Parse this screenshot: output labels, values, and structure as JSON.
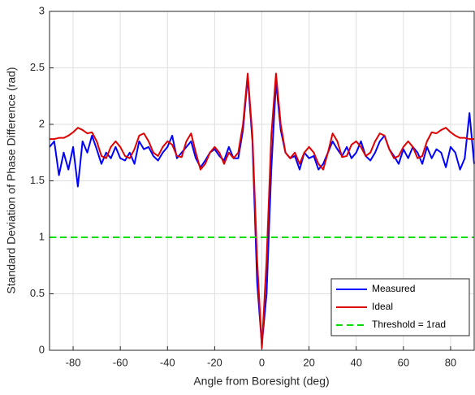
{
  "chart_data": {
    "type": "line",
    "x_label": "Angle from Boresight (deg)",
    "y_label": "Standard Deviation of Phase Difference (rad)",
    "x": [
      -90,
      -88,
      -86,
      -84,
      -82,
      -80,
      -78,
      -76,
      -74,
      -72,
      -70,
      -68,
      -66,
      -64,
      -62,
      -60,
      -58,
      -56,
      -54,
      -52,
      -50,
      -48,
      -46,
      -44,
      -42,
      -40,
      -38,
      -36,
      -34,
      -32,
      -30,
      -28,
      -26,
      -24,
      -22,
      -20,
      -18,
      -16,
      -14,
      -12,
      -10,
      -8,
      -6,
      -4,
      -2,
      0,
      2,
      4,
      6,
      8,
      10,
      12,
      14,
      16,
      18,
      20,
      22,
      24,
      26,
      28,
      30,
      32,
      34,
      36,
      38,
      40,
      42,
      44,
      46,
      48,
      50,
      52,
      54,
      56,
      58,
      60,
      62,
      64,
      66,
      68,
      70,
      72,
      74,
      76,
      78,
      80,
      82,
      84,
      86,
      88,
      90
    ],
    "series": [
      {
        "name": "Measured",
        "color": "#0000ff",
        "style": "solid",
        "values": [
          1.8,
          1.85,
          1.55,
          1.75,
          1.6,
          1.8,
          1.45,
          1.85,
          1.75,
          1.9,
          1.78,
          1.65,
          1.75,
          1.7,
          1.8,
          1.7,
          1.68,
          1.75,
          1.65,
          1.85,
          1.78,
          1.8,
          1.72,
          1.68,
          1.75,
          1.8,
          1.9,
          1.7,
          1.75,
          1.8,
          1.85,
          1.7,
          1.62,
          1.68,
          1.75,
          1.78,
          1.72,
          1.68,
          1.8,
          1.7,
          1.7,
          1.95,
          2.42,
          1.85,
          0.6,
          0.05,
          0.5,
          1.6,
          2.38,
          1.95,
          1.75,
          1.7,
          1.72,
          1.6,
          1.75,
          1.7,
          1.72,
          1.6,
          1.65,
          1.75,
          1.85,
          1.78,
          1.72,
          1.8,
          1.7,
          1.75,
          1.85,
          1.72,
          1.68,
          1.75,
          1.85,
          1.9,
          1.78,
          1.72,
          1.65,
          1.78,
          1.7,
          1.8,
          1.75,
          1.65,
          1.8,
          1.7,
          1.78,
          1.75,
          1.62,
          1.8,
          1.75,
          1.6,
          1.7,
          2.1,
          1.65
        ]
      },
      {
        "name": "Ideal",
        "color": "#e00000",
        "style": "solid",
        "values": [
          1.87,
          1.87,
          1.88,
          1.88,
          1.9,
          1.93,
          1.97,
          1.95,
          1.92,
          1.93,
          1.85,
          1.72,
          1.7,
          1.8,
          1.85,
          1.8,
          1.72,
          1.7,
          1.78,
          1.9,
          1.92,
          1.85,
          1.75,
          1.72,
          1.8,
          1.85,
          1.82,
          1.72,
          1.71,
          1.85,
          1.92,
          1.75,
          1.6,
          1.65,
          1.75,
          1.8,
          1.75,
          1.65,
          1.75,
          1.7,
          1.75,
          2.0,
          2.45,
          1.9,
          0.8,
          0.02,
          0.8,
          1.9,
          2.45,
          2.0,
          1.75,
          1.7,
          1.75,
          1.65,
          1.75,
          1.8,
          1.75,
          1.65,
          1.6,
          1.75,
          1.92,
          1.85,
          1.71,
          1.72,
          1.82,
          1.85,
          1.8,
          1.72,
          1.75,
          1.85,
          1.92,
          1.9,
          1.78,
          1.7,
          1.72,
          1.8,
          1.85,
          1.8,
          1.7,
          1.72,
          1.85,
          1.93,
          1.92,
          1.95,
          1.97,
          1.93,
          1.9,
          1.88,
          1.88,
          1.87,
          1.87
        ]
      },
      {
        "name": "Threshold = 1rad",
        "color": "#00e000",
        "style": "dashed",
        "x": [
          -90,
          90
        ],
        "values": [
          1,
          1
        ]
      }
    ],
    "xlim": [
      -90,
      90
    ],
    "xticks": [
      -80,
      -60,
      -40,
      -20,
      0,
      20,
      40,
      60,
      80
    ],
    "ylim": [
      0,
      3
    ],
    "yticks": [
      0,
      0.5,
      1,
      1.5,
      2,
      2.5,
      3
    ],
    "grid": true,
    "legend": "southeast"
  }
}
